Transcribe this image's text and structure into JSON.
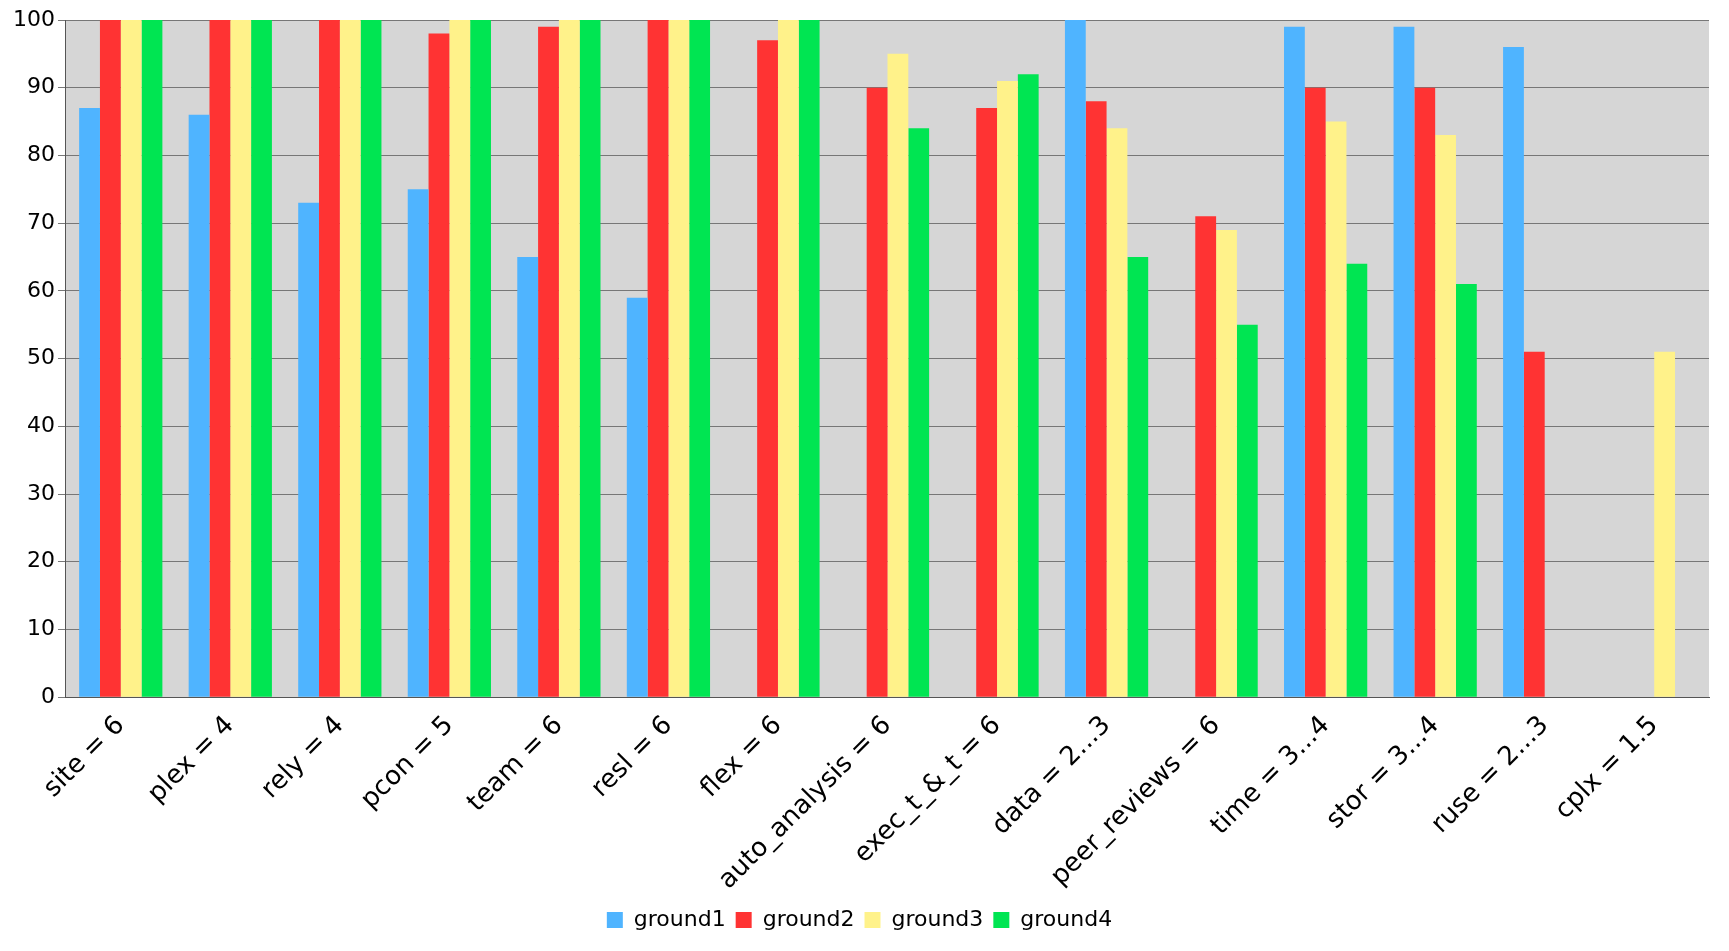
{
  "chart_data": {
    "type": "bar",
    "categories": [
      "site = 6",
      "plex = 4",
      "rely = 4",
      "pcon = 5",
      "team = 6",
      "resl = 6",
      "flex = 6",
      "auto_analysis = 6",
      "exec_t_&_t = 6",
      "data = 2...3",
      "peer_reviews = 6",
      "time = 3...4",
      "stor = 3...4",
      "ruse = 2...3",
      "cplx = 1.5"
    ],
    "series": [
      {
        "name": "ground1",
        "color": "#4fb4ff",
        "values": [
          87,
          86,
          73,
          75,
          65,
          59,
          null,
          null,
          null,
          100,
          null,
          99,
          99,
          96,
          null
        ]
      },
      {
        "name": "ground2",
        "color": "#ff3333",
        "values": [
          100,
          100,
          100,
          98,
          99,
          100,
          97,
          90,
          87,
          88,
          71,
          90,
          90,
          51,
          null
        ]
      },
      {
        "name": "ground3",
        "color": "#fff28a",
        "values": [
          100,
          100,
          100,
          100,
          100,
          100,
          100,
          95,
          91,
          84,
          69,
          85,
          83,
          null,
          51
        ]
      },
      {
        "name": "ground4",
        "color": "#00e552",
        "values": [
          100,
          100,
          100,
          100,
          100,
          100,
          100,
          84,
          92,
          65,
          55,
          64,
          61,
          null,
          null
        ]
      }
    ],
    "ylim": [
      0,
      100
    ],
    "yticks": [
      0,
      10,
      20,
      30,
      40,
      50,
      60,
      70,
      80,
      90,
      100
    ],
    "grid": "y",
    "legend": "bottom"
  }
}
